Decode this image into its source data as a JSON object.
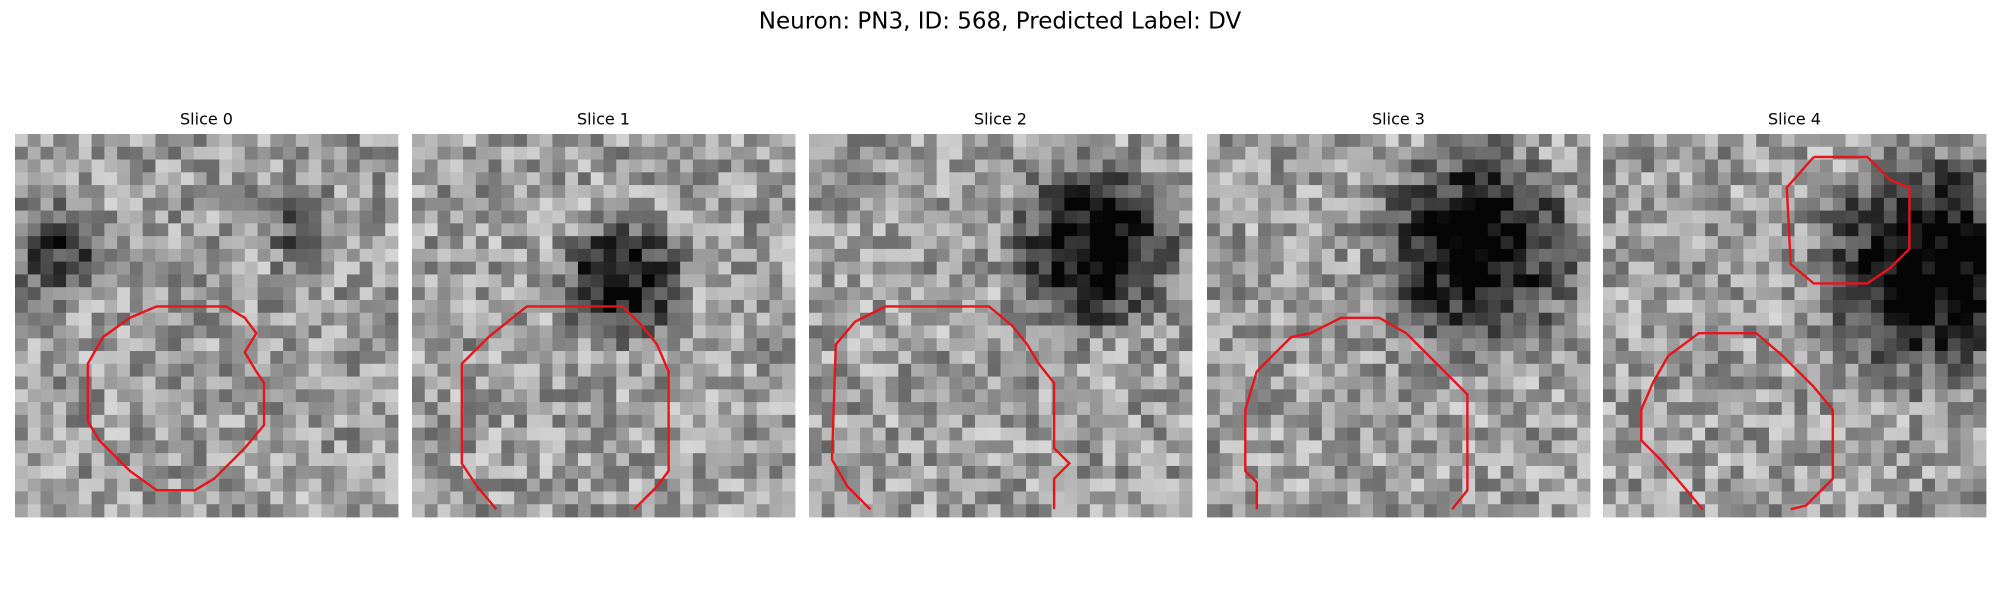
{
  "figure": {
    "title": "Neuron: PN3, ID: 568, Predicted Label: DV",
    "panels": [
      {
        "title": "Slice 0"
      },
      {
        "title": "Slice 1"
      },
      {
        "title": "Slice 2"
      },
      {
        "title": "Slice 3"
      },
      {
        "title": "Slice 4"
      }
    ]
  }
}
